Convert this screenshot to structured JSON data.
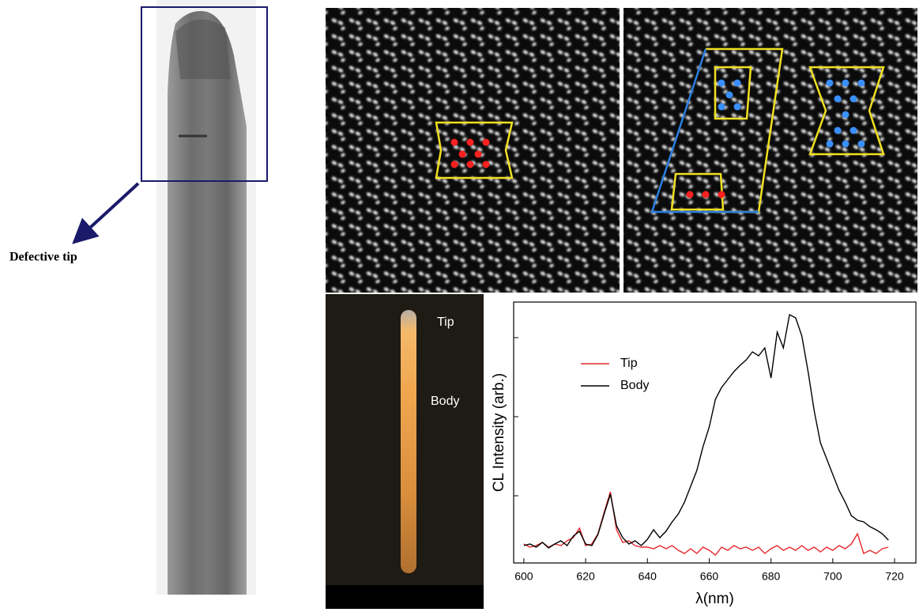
{
  "figure": {
    "annotation": "Defective tip",
    "cl_labels": [
      "Tip",
      "Body"
    ]
  },
  "chart_data": {
    "type": "line",
    "xlabel": "λ(nm)",
    "ylabel": "CL Intensity (arb.)",
    "x": [
      600,
      602,
      604,
      606,
      608,
      610,
      612,
      614,
      616,
      618,
      620,
      622,
      624,
      626,
      628,
      630,
      632,
      634,
      636,
      638,
      640,
      642,
      644,
      646,
      648,
      650,
      652,
      654,
      656,
      658,
      660,
      662,
      664,
      666,
      668,
      670,
      672,
      674,
      676,
      678,
      680,
      682,
      684,
      686,
      688,
      690,
      692,
      694,
      696,
      698,
      700,
      702,
      704,
      706,
      708,
      710,
      712,
      714,
      716,
      718
    ],
    "series": [
      {
        "name": "Tip",
        "color": "#e8262b",
        "values": [
          0.39,
          0.35,
          0.37,
          0.41,
          0.35,
          0.39,
          0.37,
          0.43,
          0.47,
          0.59,
          0.37,
          0.39,
          0.52,
          0.79,
          1.05,
          0.57,
          0.41,
          0.43,
          0.37,
          0.35,
          0.35,
          0.33,
          0.37,
          0.33,
          0.37,
          0.31,
          0.27,
          0.33,
          0.27,
          0.35,
          0.31,
          0.25,
          0.35,
          0.31,
          0.37,
          0.33,
          0.35,
          0.31,
          0.35,
          0.27,
          0.33,
          0.37,
          0.31,
          0.35,
          0.31,
          0.37,
          0.31,
          0.35,
          0.29,
          0.35,
          0.31,
          0.37,
          0.33,
          0.39,
          0.52,
          0.27,
          0.31,
          0.27,
          0.33,
          0.35
        ]
      },
      {
        "name": "Body",
        "color": "#000000",
        "values": [
          0.37,
          0.39,
          0.35,
          0.41,
          0.34,
          0.39,
          0.43,
          0.37,
          0.49,
          0.55,
          0.39,
          0.37,
          0.51,
          0.77,
          1.02,
          0.62,
          0.47,
          0.39,
          0.43,
          0.37,
          0.45,
          0.57,
          0.47,
          0.55,
          0.67,
          0.77,
          0.92,
          1.12,
          1.32,
          1.62,
          1.87,
          2.22,
          2.37,
          2.47,
          2.57,
          2.65,
          2.72,
          2.82,
          2.77,
          2.87,
          2.49,
          3.07,
          2.87,
          3.29,
          3.25,
          3.02,
          2.57,
          2.07,
          1.67,
          1.47,
          1.27,
          1.07,
          0.92,
          0.75,
          0.69,
          0.67,
          0.61,
          0.57,
          0.52,
          0.44
        ]
      }
    ],
    "xlim": [
      596.7,
      726.9
    ],
    "xticks": [
      600,
      620,
      640,
      660,
      680,
      700,
      720
    ],
    "ylim": [
      0.15,
      3.45
    ],
    "yticks": [
      1,
      2,
      3
    ],
    "ytick_labels": false,
    "legend": "upper left"
  }
}
